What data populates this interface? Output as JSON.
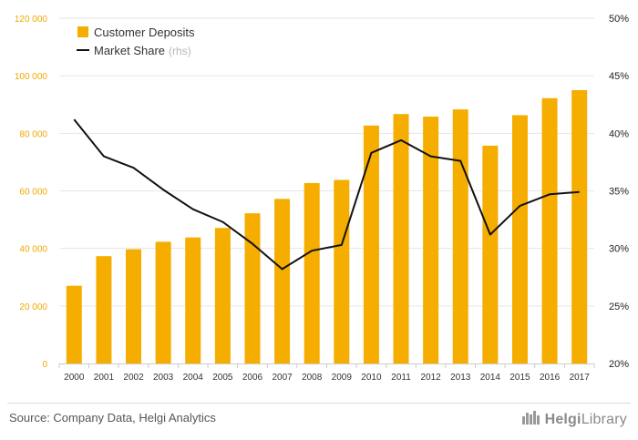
{
  "chart_data": {
    "type": "bar+line",
    "categories": [
      "2000",
      "2001",
      "2002",
      "2003",
      "2004",
      "2005",
      "2006",
      "2007",
      "2008",
      "2009",
      "2010",
      "2011",
      "2012",
      "2013",
      "2014",
      "2015",
      "2016",
      "2017"
    ],
    "series": [
      {
        "name": "Customer Deposits",
        "type": "bar",
        "axis": "left",
        "values": [
          27000,
          37300,
          39700,
          42300,
          43800,
          47100,
          52200,
          57200,
          62700,
          63800,
          82700,
          86700,
          85800,
          88300,
          75700,
          86300,
          92200,
          95000
        ]
      },
      {
        "name": "Market Share",
        "name_suffix": "(rhs)",
        "type": "line",
        "axis": "right",
        "values": [
          41.2,
          38.0,
          37.0,
          35.1,
          33.4,
          32.3,
          30.4,
          28.2,
          29.8,
          30.3,
          38.3,
          39.4,
          38.0,
          37.6,
          31.2,
          33.7,
          34.7,
          34.9
        ]
      }
    ],
    "y_left": {
      "lim": [
        0,
        120000
      ],
      "ticks": [
        0,
        20000,
        40000,
        60000,
        80000,
        100000,
        120000
      ],
      "tick_labels": [
        "0",
        "20 000",
        "40 000",
        "60 000",
        "80 000",
        "100 000",
        "120 000"
      ]
    },
    "y_right": {
      "lim": [
        20,
        50
      ],
      "ticks": [
        20,
        25,
        30,
        35,
        40,
        45,
        50
      ],
      "tick_labels": [
        "20%",
        "25%",
        "30%",
        "35%",
        "40%",
        "45%",
        "50%"
      ]
    },
    "legend": {
      "placement": "top-left"
    },
    "grid": true,
    "colors": {
      "bar": "#f5ad00",
      "line": "#111111",
      "left_axis_text": "#f0a800",
      "right_axis_text": "#222222",
      "grid": "#e6e6e6"
    }
  },
  "footer": {
    "source": "Source: Company Data, Helgi Analytics",
    "brand_bold": "Helgi",
    "brand_thin": "Library",
    "brand_icon": "helgi-logo-icon"
  }
}
